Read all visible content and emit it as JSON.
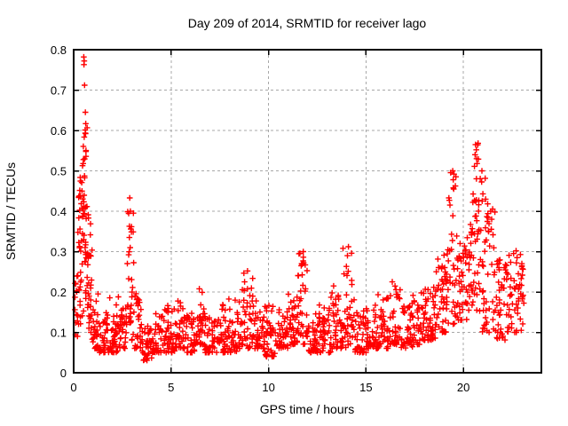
{
  "page": {
    "background_color": "#ffffff"
  },
  "chart_data": {
    "type": "scatter",
    "title": "Day 209 of 2014, SRMTID for receiver lago",
    "xlabel": "GPS time / hours",
    "ylabel": "SRMTID / TECUs",
    "xlim": [
      0,
      24
    ],
    "ylim": [
      0,
      0.8
    ],
    "xtick_values": [
      0,
      5,
      10,
      15,
      20
    ],
    "xtick_labels": [
      "0",
      "5",
      "10",
      "15",
      "20"
    ],
    "ytick_values": [
      0,
      0.1,
      0.2,
      0.3,
      0.4,
      0.5,
      0.6,
      0.7,
      0.8
    ],
    "ytick_labels": [
      "0",
      "0.1",
      "0.2",
      "0.3",
      "0.4",
      "0.5",
      "0.6",
      "0.7",
      "0.8"
    ],
    "grid": "dashed",
    "legend": "none",
    "marker": "plus",
    "marker_color": "#ff0000",
    "grid_color": "#a8a8a8",
    "axis_color": "#000000",
    "seed": 2014209,
    "point_segments": [
      [
        0.05,
        0.2,
        12,
        0.07,
        0.25,
        1.5
      ],
      [
        0.2,
        0.45,
        35,
        0.12,
        0.5,
        1.2
      ],
      [
        0.45,
        0.7,
        40,
        0.15,
        0.62,
        1.0
      ],
      [
        0.7,
        0.95,
        30,
        0.1,
        0.4,
        1.5
      ],
      [
        0.95,
        1.3,
        30,
        0.06,
        0.2,
        2
      ],
      [
        1.3,
        1.8,
        36,
        0.05,
        0.15,
        2
      ],
      [
        1.8,
        2.3,
        36,
        0.05,
        0.19,
        2
      ],
      [
        2.3,
        2.75,
        30,
        0.06,
        0.16,
        2
      ],
      [
        2.75,
        3.1,
        30,
        0.08,
        0.44,
        1.1
      ],
      [
        3.1,
        3.5,
        28,
        0.06,
        0.24,
        1.8
      ],
      [
        3.5,
        4.0,
        36,
        0.03,
        0.12,
        1.8
      ],
      [
        4.0,
        4.6,
        40,
        0.05,
        0.15,
        2
      ],
      [
        4.6,
        5.2,
        40,
        0.05,
        0.17,
        2
      ],
      [
        5.2,
        5.7,
        36,
        0.06,
        0.18,
        2
      ],
      [
        5.7,
        6.2,
        36,
        0.05,
        0.16,
        2
      ],
      [
        6.2,
        6.7,
        36,
        0.07,
        0.21,
        1.8
      ],
      [
        6.7,
        7.3,
        40,
        0.05,
        0.15,
        2
      ],
      [
        7.3,
        7.9,
        40,
        0.05,
        0.17,
        2
      ],
      [
        7.9,
        8.5,
        40,
        0.05,
        0.19,
        1.8
      ],
      [
        8.5,
        9.2,
        45,
        0.06,
        0.25,
        1.8
      ],
      [
        9.2,
        9.8,
        40,
        0.06,
        0.19,
        2
      ],
      [
        9.8,
        10.4,
        40,
        0.04,
        0.17,
        2
      ],
      [
        10.4,
        11.0,
        40,
        0.06,
        0.16,
        2
      ],
      [
        11.0,
        11.5,
        36,
        0.07,
        0.2,
        1.8
      ],
      [
        11.5,
        12.0,
        36,
        0.07,
        0.3,
        1.4
      ],
      [
        12.0,
        12.6,
        40,
        0.05,
        0.16,
        2
      ],
      [
        12.6,
        13.2,
        40,
        0.05,
        0.17,
        2
      ],
      [
        13.2,
        13.8,
        40,
        0.06,
        0.22,
        1.8
      ],
      [
        13.8,
        14.4,
        40,
        0.06,
        0.31,
        1.5
      ],
      [
        14.4,
        15.0,
        40,
        0.05,
        0.16,
        2
      ],
      [
        15.0,
        15.6,
        40,
        0.06,
        0.17,
        2
      ],
      [
        15.6,
        16.2,
        40,
        0.06,
        0.2,
        2
      ],
      [
        16.2,
        16.8,
        40,
        0.07,
        0.22,
        1.8
      ],
      [
        16.8,
        17.4,
        40,
        0.06,
        0.18,
        2
      ],
      [
        17.4,
        18.0,
        40,
        0.07,
        0.2,
        2
      ],
      [
        18.0,
        18.6,
        45,
        0.08,
        0.22,
        1.8
      ],
      [
        18.6,
        19.2,
        45,
        0.1,
        0.3,
        1.6
      ],
      [
        19.2,
        19.7,
        36,
        0.12,
        0.5,
        1.2
      ],
      [
        19.7,
        20.2,
        36,
        0.13,
        0.35,
        1.5
      ],
      [
        20.2,
        20.5,
        25,
        0.15,
        0.45,
        1.2
      ],
      [
        20.5,
        20.8,
        30,
        0.15,
        0.57,
        1.0
      ],
      [
        20.8,
        21.2,
        30,
        0.1,
        0.5,
        1.3
      ],
      [
        21.2,
        21.7,
        30,
        0.1,
        0.42,
        1.4
      ],
      [
        21.7,
        22.2,
        36,
        0.08,
        0.28,
        1.6
      ],
      [
        22.2,
        22.7,
        30,
        0.1,
        0.3,
        1.5
      ],
      [
        22.7,
        23.1,
        30,
        0.1,
        0.3,
        1.5
      ]
    ],
    "outlier_points": [
      [
        0.52,
        0.782
      ],
      [
        0.54,
        0.772
      ],
      [
        0.53,
        0.763
      ],
      [
        0.56,
        0.712
      ],
      [
        0.6,
        0.645
      ],
      [
        0.62,
        0.617
      ],
      [
        0.59,
        0.601
      ],
      [
        0.61,
        0.592
      ],
      [
        0.63,
        0.548
      ],
      [
        0.5,
        0.528
      ],
      [
        2.88,
        0.433
      ],
      [
        2.91,
        0.4
      ],
      [
        2.93,
        0.356
      ],
      [
        2.86,
        0.335
      ],
      [
        2.9,
        0.31
      ],
      [
        6.45,
        0.208
      ],
      [
        8.92,
        0.252
      ],
      [
        11.78,
        0.3
      ],
      [
        11.8,
        0.272
      ],
      [
        14.1,
        0.312
      ],
      [
        14.05,
        0.29
      ],
      [
        16.35,
        0.225
      ],
      [
        19.45,
        0.5
      ],
      [
        19.48,
        0.478
      ],
      [
        19.5,
        0.455
      ],
      [
        20.62,
        0.565
      ],
      [
        20.66,
        0.552
      ],
      [
        20.6,
        0.54
      ],
      [
        20.7,
        0.518
      ],
      [
        20.95,
        0.5
      ],
      [
        21.0,
        0.443
      ],
      [
        21.4,
        0.4
      ],
      [
        21.45,
        0.38
      ],
      [
        22.7,
        0.302
      ],
      [
        22.75,
        0.285
      ],
      [
        23.0,
        0.27
      ]
    ]
  }
}
